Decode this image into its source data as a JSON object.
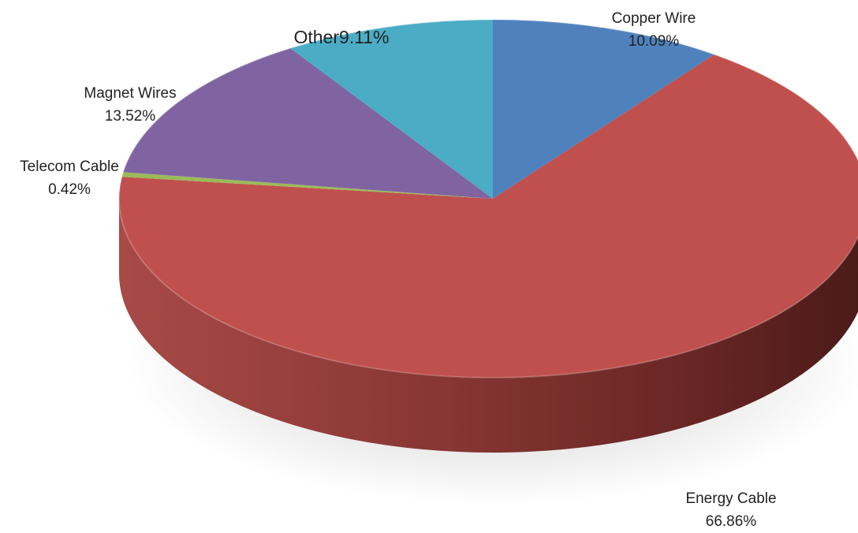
{
  "chart_data": {
    "type": "pie",
    "variant": "3d",
    "title": "",
    "slices": [
      {
        "name": "Copper Wire",
        "value": 10.09,
        "value_label": "10.09%",
        "color": "#4f81bd"
      },
      {
        "name": "Energy Cable",
        "value": 66.86,
        "value_label": "66.86%",
        "color": "#c0504d"
      },
      {
        "name": "Telecom Cable",
        "value": 0.42,
        "value_label": "0.42%",
        "color": "#9bbb59"
      },
      {
        "name": "Magnet Wires",
        "value": 13.52,
        "value_label": "13.52%",
        "color": "#8064a2"
      },
      {
        "name": "Other",
        "value": 9.11,
        "value_label": "9.11%",
        "color": "#4bacc6"
      }
    ],
    "legend": "none"
  }
}
